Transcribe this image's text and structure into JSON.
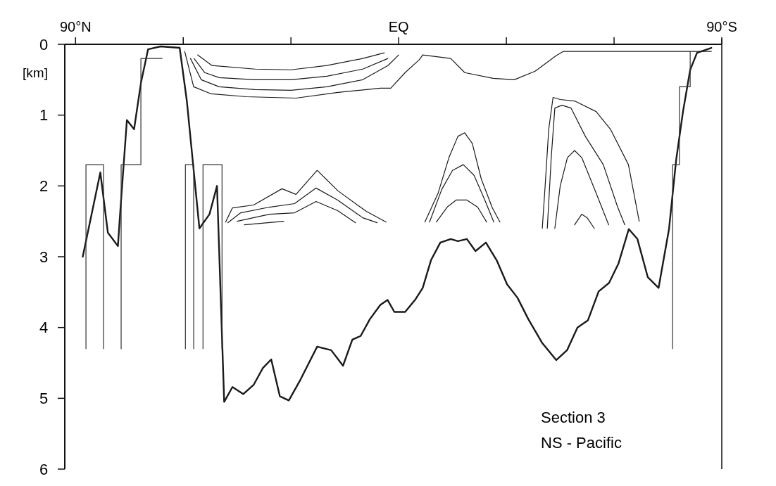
{
  "chart_data": {
    "type": "line",
    "ylabel": "[km]",
    "annotations": [
      "Section 3",
      "NS - Pacific"
    ],
    "xlim": [
      93,
      -90
    ],
    "ylim": [
      6,
      0
    ],
    "xticks": [
      {
        "value": 90,
        "label": "90°N"
      },
      {
        "value": 60,
        "label": null
      },
      {
        "value": 30,
        "label": null
      },
      {
        "value": 0,
        "label": "EQ"
      },
      {
        "value": -30,
        "label": null
      },
      {
        "value": -60,
        "label": null
      },
      {
        "value": -90,
        "label": "90°S"
      }
    ],
    "yticks": [
      0,
      1,
      2,
      3,
      4,
      5,
      6
    ],
    "grid": false,
    "series": [
      {
        "color": "#1a1a1a",
        "x": [
          88,
          83.1,
          81,
          78.2,
          77.6,
          75.7,
          73.7,
          71.8,
          69.8,
          66.3,
          61,
          59,
          55.5,
          52.7,
          50.6,
          48.6,
          46.3,
          43.3,
          40.4,
          37.8,
          35.5,
          33.1,
          30.6,
          27.6,
          22.7,
          18.8,
          15.5,
          12.9,
          10.6,
          8,
          5.1,
          3.1,
          1.2,
          -1.8,
          -4.7,
          -6.7,
          -9,
          -11.6,
          -14.5,
          -16.5,
          -19,
          -21.4,
          -24.3,
          -27.3,
          -30.2,
          -33.1,
          -36.1,
          -40,
          -43.9,
          -46.9,
          -49.8,
          -52.7,
          -55.7,
          -58.6,
          -61.2,
          -64.1,
          -66.5,
          -69.4,
          -72.4,
          -75.3,
          -77.3,
          -79.2,
          -81.2,
          -83.1,
          -87.1
        ],
        "values": [
          3,
          1.81,
          2.66,
          2.85,
          2.4,
          1.07,
          1.2,
          0.55,
          0.07,
          0.03,
          0.05,
          0.8,
          2.6,
          2.4,
          2,
          5.05,
          4.84,
          4.94,
          4.81,
          4.57,
          4.45,
          4.97,
          5.03,
          4.76,
          4.27,
          4.32,
          4.54,
          4.17,
          4.12,
          3.88,
          3.68,
          3.61,
          3.78,
          3.78,
          3.6,
          3.44,
          3.05,
          2.8,
          2.75,
          2.78,
          2.75,
          2.92,
          2.8,
          3.05,
          3.39,
          3.58,
          3.88,
          4.22,
          4.46,
          4.32,
          4,
          3.9,
          3.49,
          3.37,
          3.1,
          2.61,
          2.75,
          3.29,
          3.44,
          2.61,
          1.63,
          0.95,
          0.36,
          0.12,
          0.05
        ]
      },
      {
        "color": "#1a1a1a",
        "x": [
          59.6,
          57.1,
          52.2,
          42.4,
          28.6,
          16.9,
          5.1,
          2.2,
          -1.8,
          -5.7,
          -6.7,
          -14.5,
          -18.4,
          -26.3,
          -32.2,
          -38,
          -43.9,
          -45.9,
          -87.1
        ],
        "values": [
          0.1,
          0.6,
          0.7,
          0.74,
          0.76,
          0.68,
          0.62,
          0.62,
          0.4,
          0.22,
          0.15,
          0.2,
          0.4,
          0.48,
          0.5,
          0.38,
          0.16,
          0.1,
          0.1
        ]
      },
      {
        "color": "#1a1a1a",
        "x": [
          58,
          55,
          50,
          40,
          30,
          20,
          10,
          3,
          0
        ],
        "values": [
          0.2,
          0.5,
          0.6,
          0.64,
          0.65,
          0.6,
          0.5,
          0.3,
          0.15
        ]
      },
      {
        "color": "#1a1a1a",
        "x": [
          57,
          54,
          50,
          40,
          30,
          20,
          10,
          3
        ],
        "values": [
          0.2,
          0.4,
          0.47,
          0.5,
          0.5,
          0.45,
          0.35,
          0.2
        ]
      },
      {
        "color": "#1a1a1a",
        "x": [
          56,
          52,
          40,
          30,
          20,
          10,
          4
        ],
        "values": [
          0.15,
          0.3,
          0.35,
          0.36,
          0.3,
          0.2,
          0.12
        ]
      },
      {
        "color": "#1a1a1a",
        "x": [
          48.2,
          46.3,
          40.4,
          32.5,
          28.6,
          22.7,
          16.9,
          9,
          3.5
        ],
        "values": [
          2.51,
          2.31,
          2.27,
          2.04,
          2.12,
          1.78,
          2.07,
          2.36,
          2.51
        ]
      },
      {
        "color": "#1a1a1a",
        "x": [
          47.6,
          44,
          36,
          29,
          23,
          17,
          10,
          6
        ],
        "values": [
          2.52,
          2.38,
          2.3,
          2.25,
          2.03,
          2.2,
          2.45,
          2.52
        ]
      },
      {
        "color": "#1a1a1a",
        "x": [
          45,
          36,
          29,
          23,
          17,
          12
        ],
        "values": [
          2.5,
          2.4,
          2.38,
          2.22,
          2.35,
          2.52
        ]
      },
      {
        "color": "#1a1a1a",
        "x": [
          43,
          32
        ],
        "values": [
          2.55,
          2.5
        ]
      },
      {
        "color": "#1a1a1a",
        "x": [
          -7.3,
          -11,
          -14,
          -16.5,
          -18.4,
          -20.5,
          -23,
          -26,
          -28.2
        ],
        "values": [
          2.51,
          2.1,
          1.6,
          1.3,
          1.25,
          1.4,
          1.9,
          2.3,
          2.51
        ]
      },
      {
        "color": "#1a1a1a",
        "x": [
          -8.6,
          -12,
          -15,
          -18,
          -21,
          -24,
          -26.5
        ],
        "values": [
          2.51,
          2.05,
          1.78,
          1.7,
          1.85,
          2.2,
          2.51
        ]
      },
      {
        "color": "#1a1a1a",
        "x": [
          -10.5,
          -13.5,
          -16,
          -19,
          -22,
          -24.5
        ],
        "values": [
          2.51,
          2.3,
          2.2,
          2.2,
          2.3,
          2.51
        ]
      },
      {
        "color": "#1a1a1a",
        "x": [
          -40,
          -40.8,
          -41.8,
          -43,
          -45,
          -49,
          -55,
          -59,
          -64,
          -67
        ],
        "values": [
          2.6,
          2,
          1.2,
          0.75,
          0.78,
          0.8,
          0.95,
          1.2,
          1.7,
          2.5
        ]
      },
      {
        "color": "#1a1a1a",
        "x": [
          -41.4,
          -42.5,
          -43.5,
          -45.5,
          -48,
          -52,
          -57,
          -61,
          -63
        ],
        "values": [
          2.6,
          1.6,
          0.9,
          0.86,
          0.9,
          1.3,
          1.7,
          2.3,
          2.55
        ]
      },
      {
        "color": "#1a1a1a",
        "x": [
          -43.5,
          -45,
          -47,
          -49,
          -51,
          -55,
          -58.5
        ],
        "values": [
          2.6,
          2,
          1.6,
          1.5,
          1.6,
          2.1,
          2.55
        ]
      },
      {
        "color": "#1a1a1a",
        "x": [
          -49,
          -51,
          -52.5,
          -54.5
        ],
        "values": [
          2.55,
          2.4,
          2.45,
          2.6
        ]
      },
      {
        "color": "#333333",
        "x": [
          87.1,
          87.1,
          82.2,
          82.2
        ],
        "values": [
          4.3,
          1.7,
          1.7,
          4.3
        ]
      },
      {
        "color": "#333333",
        "x": [
          77.3,
          77.3,
          71.8,
          71.8,
          65.9
        ],
        "values": [
          4.3,
          1.7,
          1.7,
          0.2,
          0.2
        ]
      },
      {
        "color": "#333333",
        "x": [
          59.4,
          59.4,
          57.1,
          57.1
        ],
        "values": [
          4.3,
          1.7,
          1.7,
          4.3
        ]
      },
      {
        "color": "#333333",
        "x": [
          54.5,
          54.5,
          49.2,
          49.2
        ],
        "values": [
          4.3,
          1.7,
          1.7,
          4.3
        ]
      },
      {
        "color": "#333333",
        "x": [
          -76.3,
          -76.3,
          -78.2,
          -78.2,
          -81.2,
          -81.2
        ],
        "values": [
          4.3,
          1.7,
          1.7,
          0.6,
          0.6,
          0.1
        ]
      }
    ]
  }
}
